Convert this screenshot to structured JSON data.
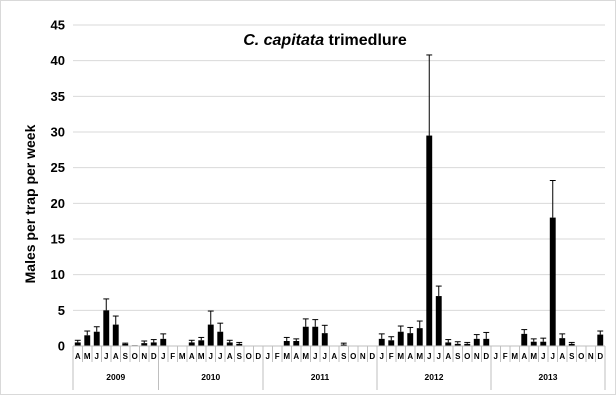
{
  "chart_data": {
    "type": "bar",
    "title_italic": "C. capitata",
    "title_rest": " trimedlure",
    "ylabel": "Males per trap per week",
    "ylim": [
      0,
      45
    ],
    "yticks": [
      0,
      5,
      10,
      15,
      20,
      25,
      30,
      35,
      40,
      45
    ],
    "groups": [
      {
        "year": "2009",
        "months": [
          "A",
          "M",
          "J",
          "J",
          "A",
          "S",
          "O",
          "N",
          "D"
        ],
        "values": [
          0.5,
          1.5,
          2.0,
          5.0,
          3.0,
          0.3,
          0.1,
          0.4,
          0.5
        ],
        "errors": [
          0.3,
          0.6,
          0.7,
          1.6,
          1.2,
          0.1,
          0.0,
          0.3,
          0.4
        ]
      },
      {
        "year": "2010",
        "months": [
          "J",
          "F",
          "M",
          "A",
          "M",
          "J",
          "J",
          "A",
          "S",
          "O",
          "D"
        ],
        "values": [
          1.0,
          0.0,
          0.0,
          0.5,
          0.8,
          3.0,
          2.0,
          0.5,
          0.3,
          0.0,
          0.0
        ],
        "errors": [
          0.7,
          0.0,
          0.0,
          0.3,
          0.4,
          1.9,
          1.2,
          0.3,
          0.2,
          0.0,
          0.0
        ]
      },
      {
        "year": "2011",
        "months": [
          "J",
          "F",
          "M",
          "A",
          "M",
          "J",
          "J",
          "A",
          "S",
          "O",
          "N",
          "D"
        ],
        "values": [
          0.0,
          0.0,
          0.7,
          0.7,
          2.7,
          2.7,
          1.8,
          0.0,
          0.2,
          0.0,
          0.0,
          0.0
        ],
        "errors": [
          0.0,
          0.0,
          0.5,
          0.3,
          1.1,
          1.0,
          1.1,
          0.0,
          0.2,
          0.0,
          0.0,
          0.0
        ]
      },
      {
        "year": "2012",
        "months": [
          "J",
          "F",
          "M",
          "A",
          "M",
          "J",
          "J",
          "A",
          "S",
          "O",
          "N",
          "D"
        ],
        "values": [
          1.0,
          0.8,
          2.0,
          1.8,
          2.5,
          29.5,
          7.0,
          0.5,
          0.3,
          0.3,
          1.0,
          1.0
        ],
        "errors": [
          0.7,
          0.5,
          0.8,
          0.8,
          1.0,
          11.3,
          1.4,
          0.4,
          0.3,
          0.2,
          0.6,
          0.9
        ]
      },
      {
        "year": "2013",
        "months": [
          "J",
          "F",
          "M",
          "A",
          "M",
          "J",
          "J",
          "A",
          "S",
          "O",
          "N",
          "D"
        ],
        "values": [
          0.0,
          0.0,
          0.0,
          1.7,
          0.6,
          0.6,
          18.0,
          1.1,
          0.3,
          0.0,
          0.0,
          1.6
        ],
        "errors": [
          0.0,
          0.0,
          0.0,
          0.6,
          0.4,
          0.5,
          5.2,
          0.6,
          0.2,
          0.0,
          0.0,
          0.5
        ]
      }
    ]
  }
}
